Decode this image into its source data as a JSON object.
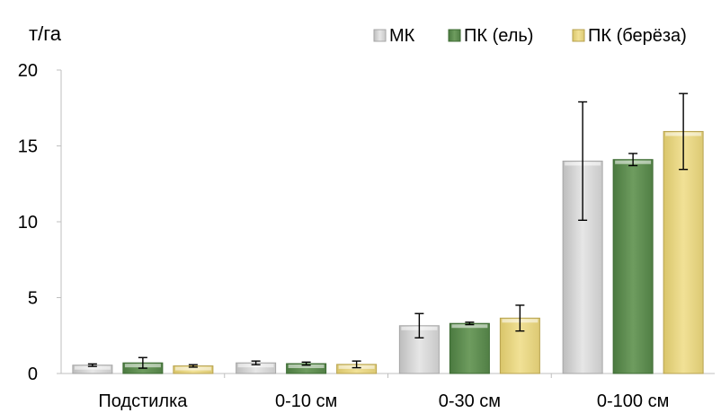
{
  "chart_data": {
    "type": "bar",
    "unit": "т/га",
    "categories": [
      "Подстилка",
      "0-10 см",
      "0-30 см",
      "0-100 см"
    ],
    "ylim": [
      0,
      20
    ],
    "yticks": [
      "0",
      "5",
      "10",
      "15",
      "20"
    ],
    "grid": false,
    "legend_position": "top-right",
    "series": [
      {
        "name": "МК",
        "color": "#d9d9d9",
        "edge": "#a6a6a6",
        "values": [
          0.55,
          0.7,
          3.15,
          14.0
        ],
        "errors": [
          0.08,
          0.12,
          0.8,
          3.9
        ]
      },
      {
        "name": "ПК (ель)",
        "color": "#5f8f52",
        "edge": "#3d6b33",
        "values": [
          0.7,
          0.65,
          3.3,
          14.1
        ],
        "errors": [
          0.35,
          0.1,
          0.08,
          0.4
        ]
      },
      {
        "name": "ПК (берёза)",
        "color": "#ead884",
        "edge": "#b7a24f",
        "values": [
          0.5,
          0.6,
          3.65,
          15.95
        ],
        "errors": [
          0.08,
          0.22,
          0.85,
          2.5
        ]
      }
    ]
  }
}
